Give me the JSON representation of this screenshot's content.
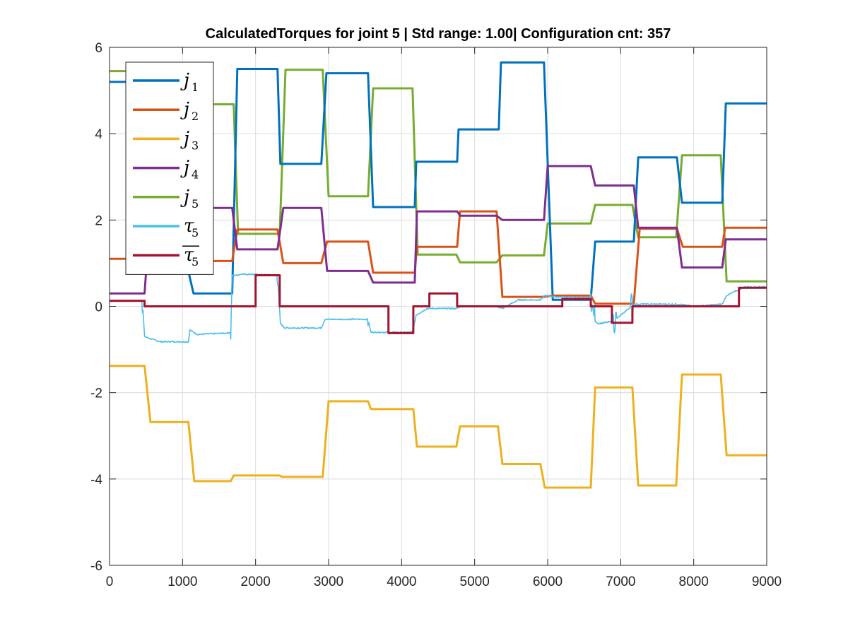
{
  "chart_data": {
    "type": "line",
    "title": "CalculatedTorques for joint 5 | Std range: 1.00| Configuration cnt: 357",
    "xlabel": "",
    "ylabel": "",
    "xlim": [
      0,
      9000
    ],
    "ylim": [
      -6,
      6
    ],
    "xticks": [
      0,
      1000,
      2000,
      3000,
      4000,
      5000,
      6000,
      7000,
      8000,
      9000
    ],
    "yticks": [
      -6,
      -4,
      -2,
      0,
      2,
      4,
      6
    ],
    "grid": true,
    "legend_position": "top-left",
    "series": [
      {
        "name": "j1",
        "base": "j",
        "sub": "1",
        "overline": false,
        "color": "#0072BD",
        "style": "step",
        "x": [
          0,
          480,
          1150,
          1680,
          1750,
          2300,
          2340,
          2900,
          2970,
          3540,
          3610,
          4180,
          4200,
          4760,
          4780,
          5330,
          5360,
          5950,
          6070,
          6590,
          6650,
          7180,
          7240,
          7770,
          7840,
          8390,
          8440,
          9000
        ],
        "y": [
          5.2,
          5.2,
          0.3,
          0.3,
          5.5,
          5.5,
          3.3,
          3.3,
          5.4,
          5.4,
          2.3,
          2.3,
          3.35,
          3.35,
          4.1,
          4.1,
          5.65,
          5.65,
          0.15,
          0.15,
          1.5,
          1.5,
          3.45,
          3.45,
          2.4,
          2.4,
          4.7,
          4.7
        ]
      },
      {
        "name": "j2",
        "base": "j",
        "sub": "2",
        "overline": false,
        "color": "#D95319",
        "style": "step",
        "x": [
          0,
          480,
          480,
          1150,
          1150,
          1680,
          1750,
          2300,
          2380,
          2900,
          2980,
          3540,
          3610,
          4180,
          4210,
          4760,
          4800,
          5300,
          5380,
          5950,
          6070,
          6590,
          6650,
          7180,
          7260,
          7770,
          7850,
          8390,
          8430,
          9000
        ],
        "y": [
          1.1,
          1.1,
          1.05,
          1.05,
          1.05,
          1.05,
          1.78,
          1.78,
          1.0,
          1.0,
          1.5,
          1.5,
          0.78,
          0.78,
          1.38,
          1.38,
          2.2,
          2.2,
          0.22,
          0.22,
          0.25,
          0.25,
          0.06,
          0.06,
          1.8,
          1.8,
          1.38,
          1.38,
          1.82,
          1.82
        ]
      },
      {
        "name": "j3",
        "base": "j",
        "sub": "3",
        "overline": false,
        "color": "#EDB120",
        "style": "step",
        "x": [
          0,
          480,
          560,
          1080,
          1160,
          1660,
          1700,
          2330,
          2360,
          2920,
          3000,
          3540,
          3580,
          4160,
          4210,
          4750,
          4800,
          5320,
          5380,
          5900,
          5960,
          6590,
          6650,
          7160,
          7240,
          7760,
          7840,
          8370,
          8450,
          9000
        ],
        "y": [
          -1.38,
          -1.38,
          -2.68,
          -2.68,
          -4.05,
          -4.05,
          -3.92,
          -3.92,
          -3.95,
          -3.95,
          -2.2,
          -2.2,
          -2.38,
          -2.38,
          -3.25,
          -3.25,
          -2.78,
          -2.78,
          -3.65,
          -3.65,
          -4.2,
          -4.2,
          -1.88,
          -1.88,
          -4.15,
          -4.15,
          -1.58,
          -1.58,
          -3.45,
          -3.45
        ]
      },
      {
        "name": "j4",
        "base": "j",
        "sub": "4",
        "overline": false,
        "color": "#7E2F8E",
        "style": "step",
        "x": [
          0,
          480,
          560,
          1150,
          1150,
          1680,
          1750,
          2300,
          2380,
          2900,
          2980,
          3540,
          3610,
          4180,
          4210,
          4760,
          4800,
          5300,
          5380,
          5950,
          6000,
          6590,
          6650,
          7180,
          7240,
          7770,
          7840,
          8390,
          8440,
          9000
        ],
        "y": [
          0.3,
          0.3,
          2.28,
          2.28,
          2.28,
          2.28,
          1.32,
          1.32,
          2.28,
          2.28,
          0.82,
          0.82,
          0.55,
          0.55,
          2.2,
          2.2,
          2.1,
          2.1,
          2.0,
          2.0,
          3.25,
          3.25,
          2.8,
          2.8,
          1.82,
          1.82,
          0.9,
          0.9,
          1.55,
          1.55
        ]
      },
      {
        "name": "j5",
        "base": "j",
        "sub": "5",
        "overline": false,
        "color": "#77AC30",
        "style": "step",
        "x": [
          0,
          480,
          560,
          1700,
          1760,
          2330,
          2410,
          2920,
          3000,
          3540,
          3610,
          4150,
          4220,
          4750,
          4800,
          5300,
          5380,
          5950,
          6000,
          6590,
          6650,
          7160,
          7240,
          7760,
          7840,
          8370,
          8450,
          9000
        ],
        "y": [
          5.45,
          5.45,
          4.68,
          4.68,
          1.68,
          1.68,
          5.48,
          5.48,
          2.55,
          2.55,
          5.05,
          5.05,
          1.2,
          1.2,
          1.02,
          1.02,
          1.18,
          1.18,
          1.92,
          1.92,
          2.35,
          2.35,
          1.6,
          1.6,
          3.5,
          3.5,
          0.58,
          0.58
        ]
      },
      {
        "name": "τ5",
        "base": "τ",
        "sub": "5",
        "overline": false,
        "color": "#4DBEEE",
        "style": "noisy",
        "x": [
          0,
          450,
          480,
          560,
          700,
          1080,
          1100,
          1200,
          1600,
          1660,
          1680,
          1750,
          1800,
          2300,
          2340,
          2400,
          2900,
          2950,
          3540,
          3580,
          3700,
          4150,
          4200,
          4350,
          4760,
          4800,
          5300,
          5380,
          5600,
          5900,
          5960,
          6100,
          6590,
          6650,
          6700,
          6900,
          7180,
          7250,
          7770,
          7800,
          8000,
          8390,
          8450,
          8700,
          9000
        ],
        "y": [
          0.12,
          0.12,
          -0.7,
          -0.75,
          -0.82,
          -0.82,
          -0.55,
          -0.65,
          -0.62,
          -0.6,
          0.72,
          0.72,
          0.75,
          0.72,
          -0.4,
          -0.5,
          -0.5,
          -0.3,
          -0.3,
          -0.6,
          -0.6,
          -0.6,
          -0.2,
          -0.05,
          -0.05,
          0.0,
          0.0,
          -0.05,
          0.15,
          0.15,
          0.25,
          0.22,
          0.2,
          -0.35,
          -0.4,
          -0.35,
          0.05,
          0.05,
          0.05,
          0.05,
          0.0,
          0.05,
          0.25,
          0.45,
          0.45
        ]
      },
      {
        "name": "τ5 mean",
        "base": "τ",
        "sub": "5",
        "overline": true,
        "color": "#A2142F",
        "style": "step",
        "x": [
          0,
          480,
          480,
          2000,
          2000,
          2330,
          2330,
          3820,
          3820,
          4160,
          4160,
          4380,
          4380,
          4760,
          4760,
          6200,
          6200,
          6590,
          6590,
          6880,
          6880,
          7160,
          7160,
          8620,
          8620,
          9000
        ],
        "y": [
          0.13,
          0.13,
          0.0,
          0.0,
          0.72,
          0.72,
          0.0,
          0.0,
          -0.62,
          -0.62,
          0.0,
          0.0,
          0.3,
          0.3,
          0.0,
          0.0,
          0.17,
          0.17,
          0.0,
          0.0,
          -0.38,
          -0.38,
          0.0,
          0.0,
          0.43,
          0.43
        ]
      }
    ]
  }
}
